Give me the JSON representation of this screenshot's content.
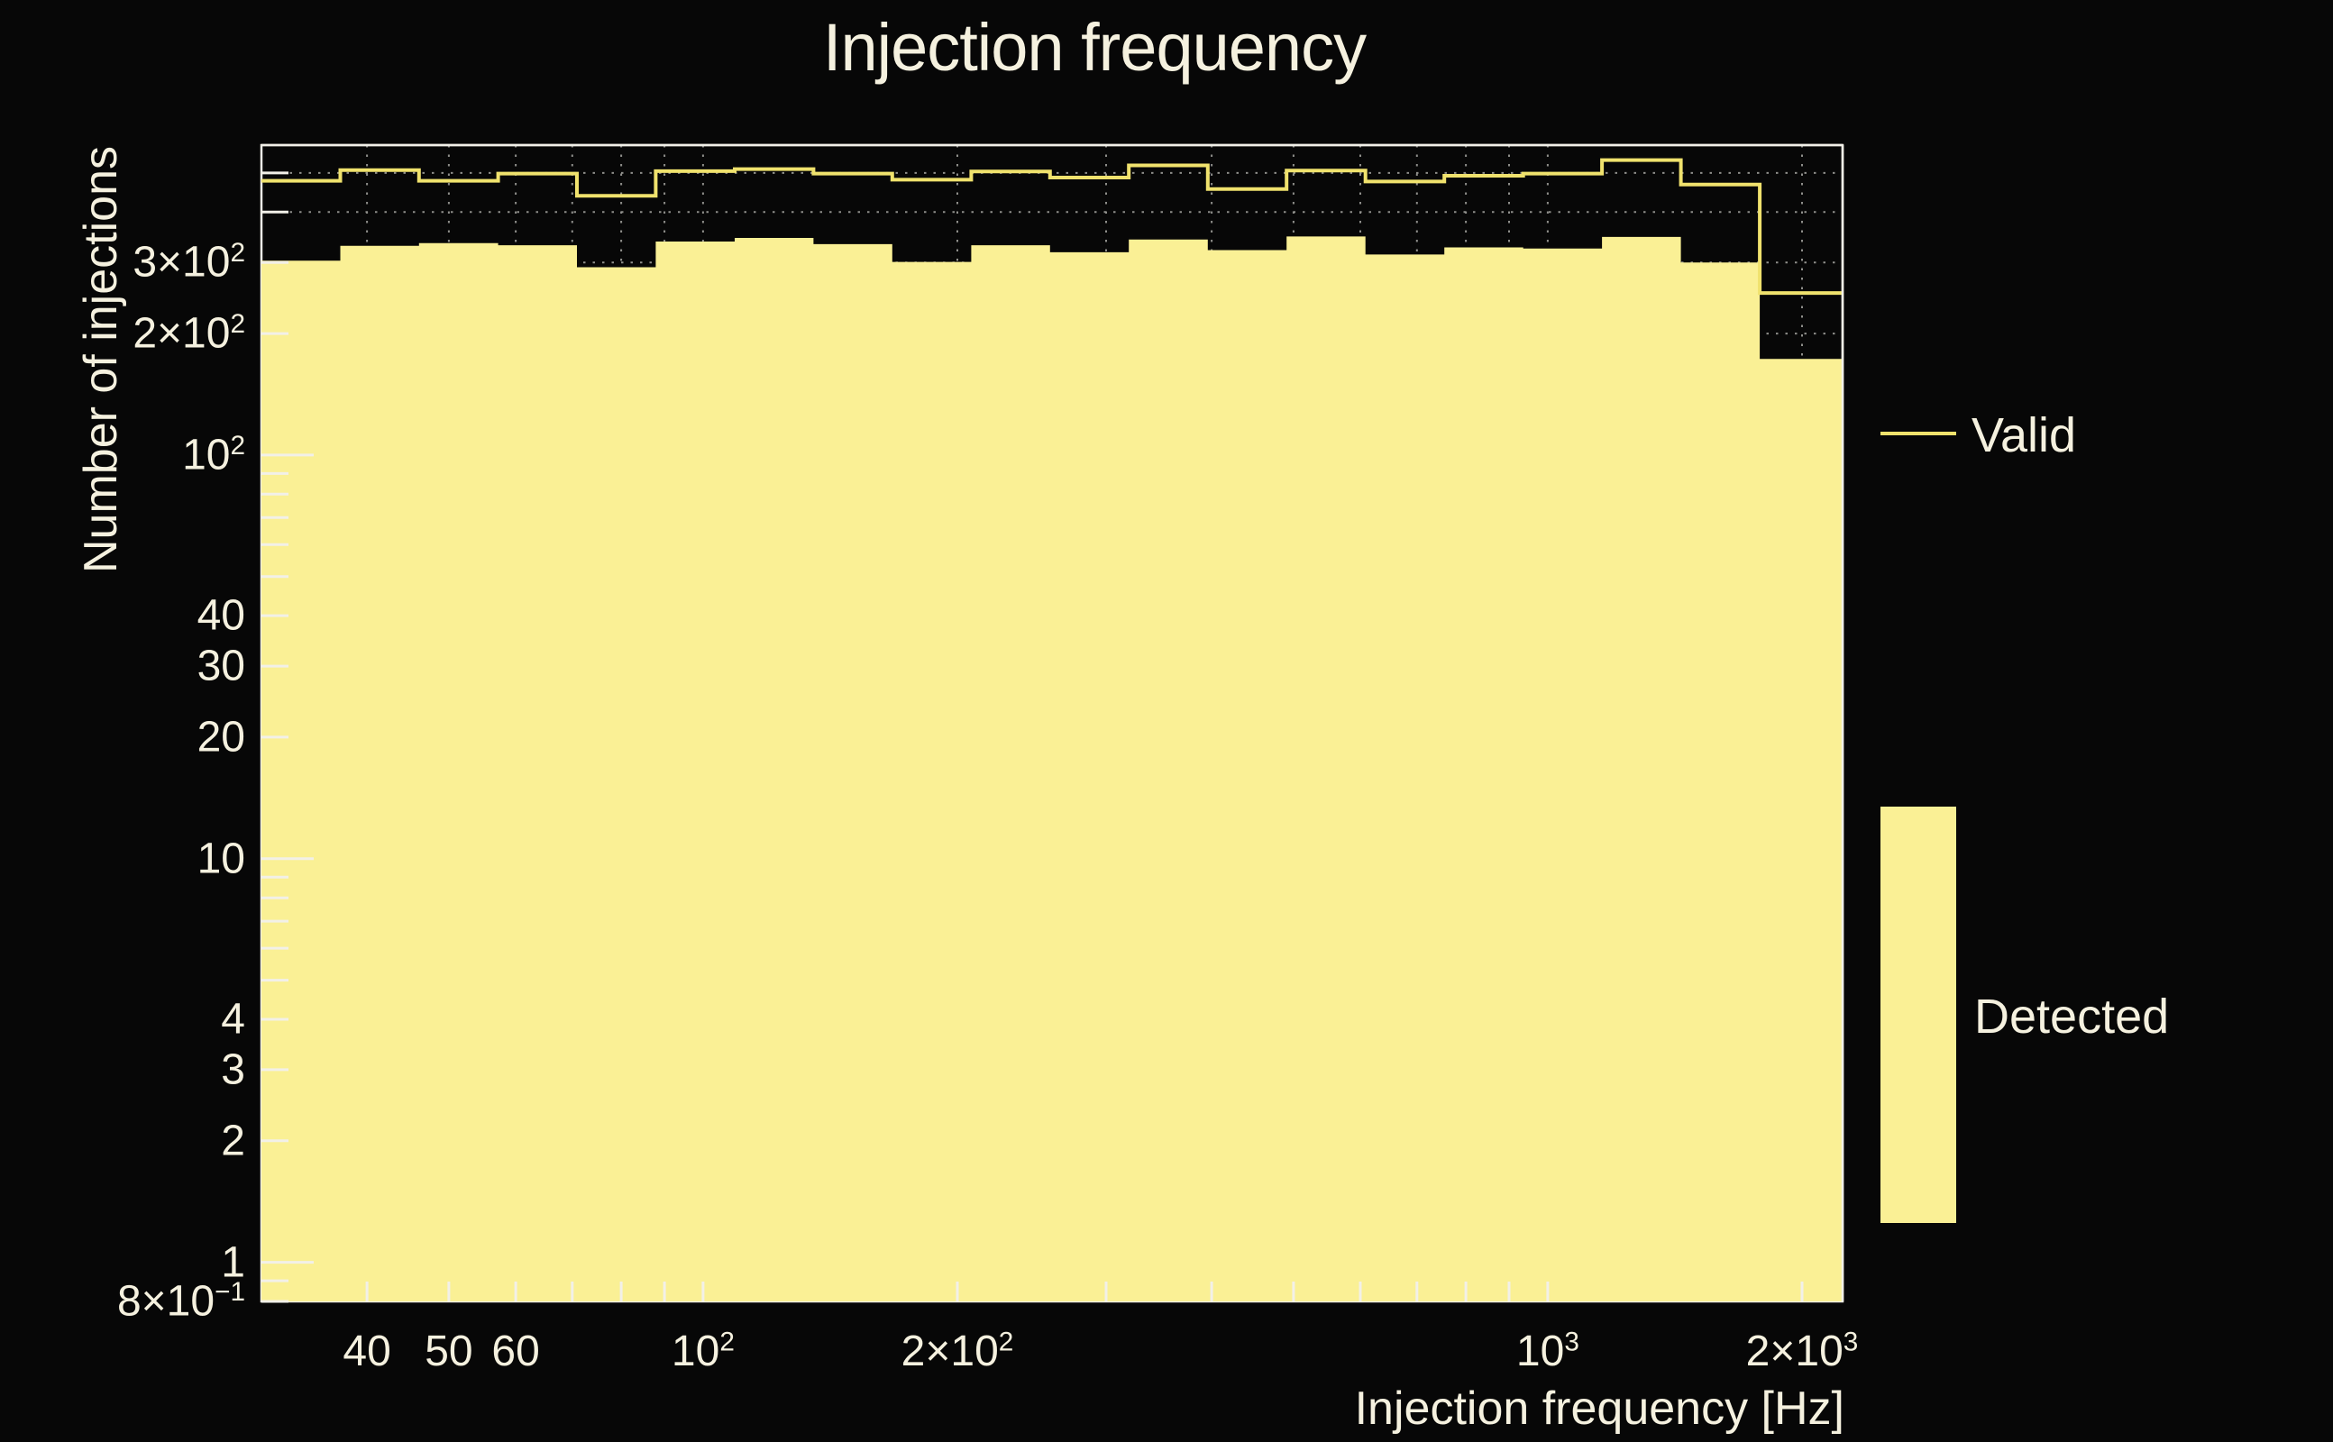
{
  "colors": {
    "background": "#070707",
    "frame": "#f2f0e8",
    "text": "#f5f1df",
    "grid": "#8e8e8a",
    "valid_line": "#f0e26d",
    "detected_fill": "#faf095"
  },
  "legend": {
    "items": [
      {
        "label": "Valid",
        "swatch": "line"
      },
      {
        "label": "Detected",
        "swatch": "box"
      }
    ]
  },
  "chart_data": {
    "type": "histogram",
    "title": "Injection frequency",
    "xlabel": "Injection frequency [Hz]",
    "ylabel": "Number of injections",
    "xscale": "log",
    "yscale": "log",
    "xlim": [
      30,
      2234
    ],
    "ylim": [
      0.8,
      586
    ],
    "grid": "dotted grey at every n×10^k tick, drawn beneath histograms",
    "legend_position": "right, outside plot",
    "n_bins": 20,
    "bin_edges_hz": [
      30,
      37.2,
      46.1,
      57.2,
      70.9,
      87.9,
      109.0,
      135.1,
      167.5,
      207.7,
      257.5,
      319.2,
      395.8,
      490.7,
      608.4,
      754.3,
      935.2,
      1159.4,
      1437.5,
      1782.2,
      2234
    ],
    "series": [
      {
        "name": "Valid",
        "style": "step-outline",
        "color": "#f0e26d",
        "values": [
          478,
          508,
          478,
          498,
          439,
          505,
          511,
          498,
          481,
          504,
          487,
          522,
          456,
          507,
          476,
          492,
          498,
          538,
          468,
          252
        ]
      },
      {
        "name": "Detected",
        "style": "filled-steps",
        "color": "#faf095",
        "values": [
          303,
          330,
          335,
          331,
          292,
          338,
          345,
          333,
          301,
          331,
          318,
          342,
          322,
          348,
          314,
          327,
          325,
          347,
          300,
          173
        ]
      }
    ],
    "axes": {
      "x_ticks": [
        40,
        50,
        60,
        70,
        80,
        90,
        100,
        200,
        300,
        400,
        500,
        600,
        700,
        800,
        900,
        1000,
        2000
      ],
      "y_ticks": [
        500,
        400,
        300,
        200,
        100,
        90,
        80,
        70,
        60,
        50,
        40,
        30,
        20,
        10,
        9,
        8,
        7,
        6,
        5,
        4,
        3,
        2,
        1,
        0.9,
        0.8
      ],
      "x_tick_labels": [
        {
          "value": 40,
          "text": "40",
          "sup": ""
        },
        {
          "value": 50,
          "text": "50",
          "sup": ""
        },
        {
          "value": 60,
          "text": "60",
          "sup": ""
        },
        {
          "value": 100,
          "text": "10",
          "sup": "2"
        },
        {
          "value": 200,
          "text": "2×10",
          "sup": "2"
        },
        {
          "value": 1000,
          "text": "10",
          "sup": "3"
        },
        {
          "value": 2000,
          "text": "2×10",
          "sup": "3"
        }
      ],
      "y_tick_labels": [
        {
          "value": 300,
          "text": "3×10",
          "sup": "2"
        },
        {
          "value": 200,
          "text": "2×10",
          "sup": "2"
        },
        {
          "value": 100,
          "text": "10",
          "sup": "2"
        },
        {
          "value": 40,
          "text": "40",
          "sup": ""
        },
        {
          "value": 30,
          "text": "30",
          "sup": ""
        },
        {
          "value": 20,
          "text": "20",
          "sup": ""
        },
        {
          "value": 10,
          "text": "10",
          "sup": ""
        },
        {
          "value": 4,
          "text": "4",
          "sup": ""
        },
        {
          "value": 3,
          "text": "3",
          "sup": ""
        },
        {
          "value": 2,
          "text": "2",
          "sup": ""
        },
        {
          "value": 1,
          "text": "1",
          "sup": ""
        },
        {
          "value": 0.8,
          "text": "8×10",
          "sup": "−1"
        }
      ]
    }
  }
}
